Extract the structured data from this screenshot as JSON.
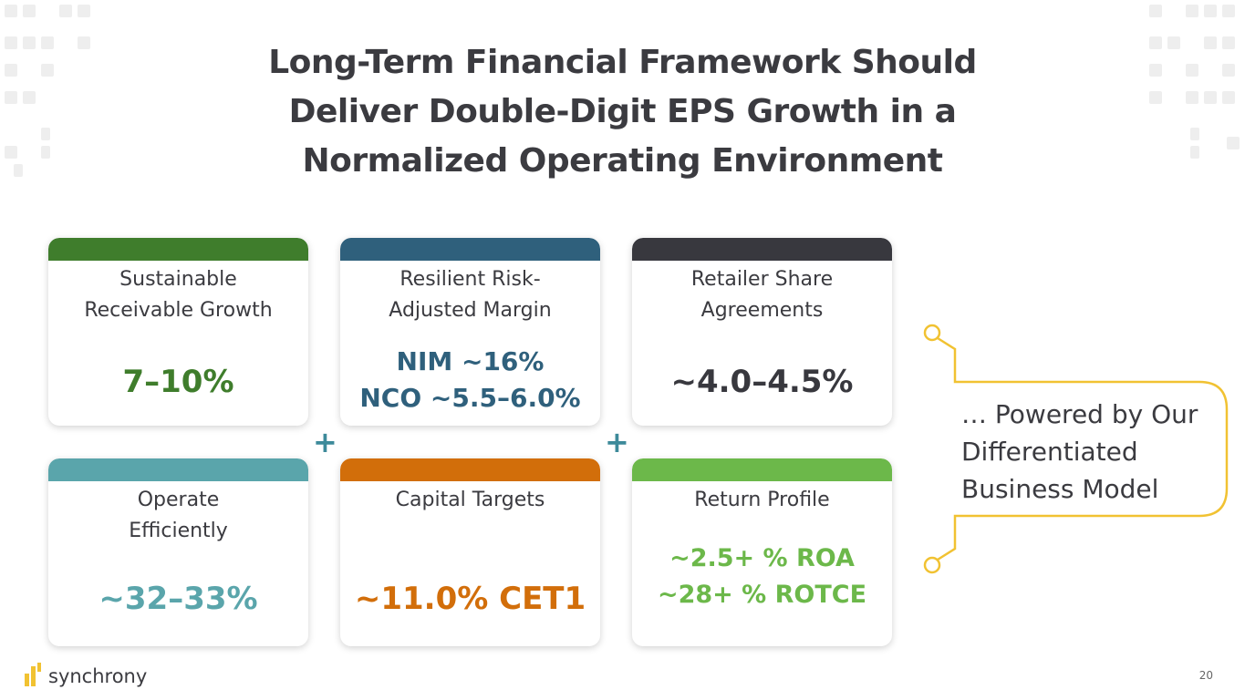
{
  "title_lines": [
    "Long-Term Financial Framework Should",
    "Deliver Double-Digit EPS Growth in a",
    "Normalized Operating Environment"
  ],
  "cards": [
    {
      "heading": [
        "Sustainable",
        "Receivable Growth"
      ],
      "values": [
        "7–10%"
      ],
      "color": "#3f7d2c"
    },
    {
      "heading": [
        "Resilient Risk-",
        "Adjusted Margin"
      ],
      "values": [
        "NIM ~16%",
        "NCO ~5.5–6.0%"
      ],
      "color": "#2f607c"
    },
    {
      "heading": [
        "Retailer Share",
        "Agreements"
      ],
      "values": [
        "~4.0–4.5%"
      ],
      "color": "#38383e"
    },
    {
      "heading": [
        "Operate",
        "Efficiently"
      ],
      "values": [
        "~32–33%"
      ],
      "color": "#5aa5ab"
    },
    {
      "heading": [
        "Capital Targets"
      ],
      "values": [
        "~11.0% CET1"
      ],
      "color": "#d26e0a"
    },
    {
      "heading": [
        "Return Profile"
      ],
      "values": [
        "~2.5+ % ROA",
        "~28+ % ROTCE"
      ],
      "color": "#6cb84a"
    }
  ],
  "plus_sign": "+",
  "powered_lines": [
    "… Powered by Our",
    "Differentiated",
    "Business Model"
  ],
  "accent_color": "#f1c232",
  "logo_text": "synchrony",
  "page_number": "20"
}
